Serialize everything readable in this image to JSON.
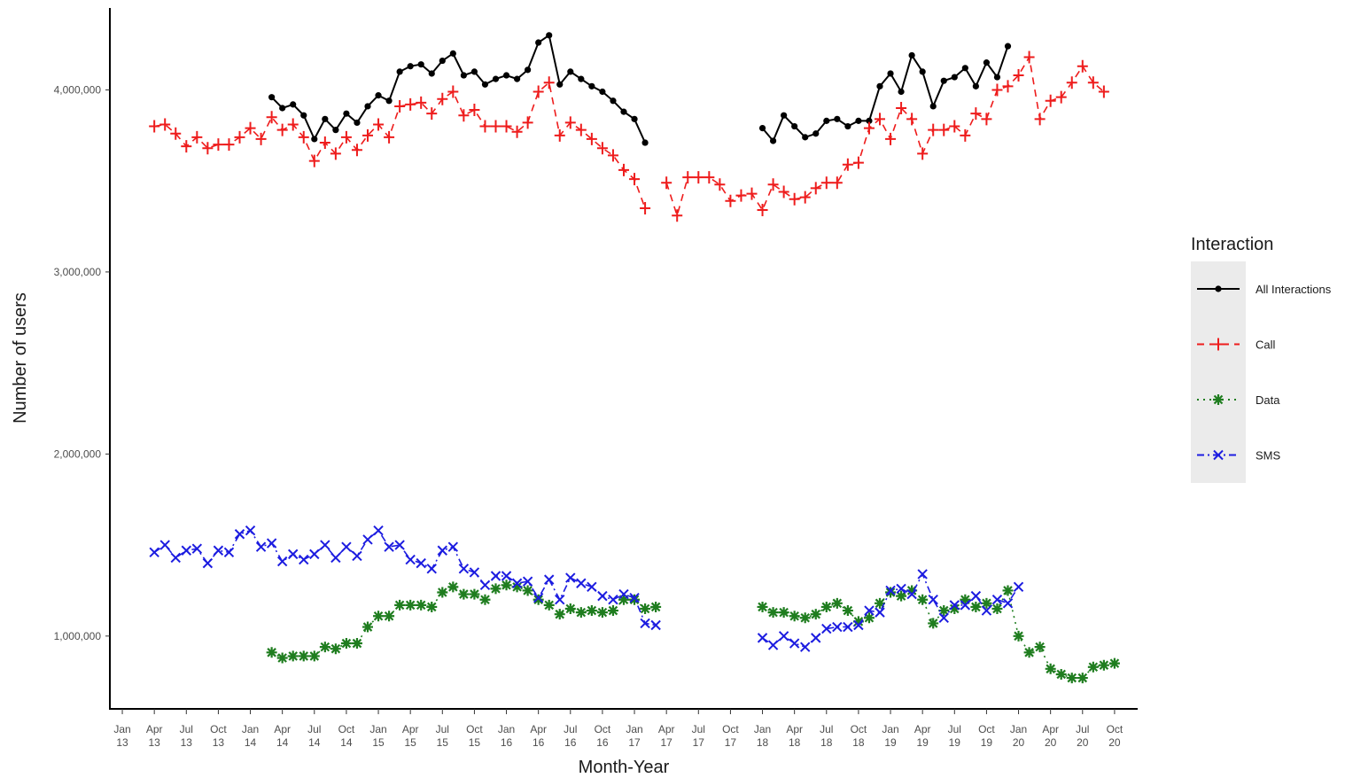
{
  "chart_data": {
    "type": "line",
    "xlabel": "Month-Year",
    "ylabel": "Number of users",
    "ylim": [
      600000,
      4450000
    ],
    "xlim": [
      "2012-12",
      "2020-12"
    ],
    "x_tick_labels": [
      [
        "Jan",
        "13"
      ],
      [
        "Apr",
        "13"
      ],
      [
        "Jul",
        "13"
      ],
      [
        "Oct",
        "13"
      ],
      [
        "Jan",
        "14"
      ],
      [
        "Apr",
        "14"
      ],
      [
        "Jul",
        "14"
      ],
      [
        "Oct",
        "14"
      ],
      [
        "Jan",
        "15"
      ],
      [
        "Apr",
        "15"
      ],
      [
        "Jul",
        "15"
      ],
      [
        "Oct",
        "15"
      ],
      [
        "Jan",
        "16"
      ],
      [
        "Apr",
        "16"
      ],
      [
        "Jul",
        "16"
      ],
      [
        "Oct",
        "16"
      ],
      [
        "Jan",
        "17"
      ],
      [
        "Apr",
        "17"
      ],
      [
        "Jul",
        "17"
      ],
      [
        "Oct",
        "17"
      ],
      [
        "Jan",
        "18"
      ],
      [
        "Apr",
        "18"
      ],
      [
        "Jul",
        "18"
      ],
      [
        "Oct",
        "18"
      ],
      [
        "Jan",
        "19"
      ],
      [
        "Apr",
        "19"
      ],
      [
        "Jul",
        "19"
      ],
      [
        "Oct",
        "19"
      ],
      [
        "Jan",
        "20"
      ],
      [
        "Apr",
        "20"
      ],
      [
        "Jul",
        "20"
      ],
      [
        "Oct",
        "20"
      ]
    ],
    "x_tick_dates": [
      "2013-01",
      "2013-04",
      "2013-07",
      "2013-10",
      "2014-01",
      "2014-04",
      "2014-07",
      "2014-10",
      "2015-01",
      "2015-04",
      "2015-07",
      "2015-10",
      "2016-01",
      "2016-04",
      "2016-07",
      "2016-10",
      "2017-01",
      "2017-04",
      "2017-07",
      "2017-10",
      "2018-01",
      "2018-04",
      "2018-07",
      "2018-10",
      "2019-01",
      "2019-04",
      "2019-07",
      "2019-10",
      "2020-01",
      "2020-04",
      "2020-07",
      "2020-10"
    ],
    "y_ticks": [
      1000000,
      2000000,
      3000000,
      4000000
    ],
    "y_tick_labels": [
      "1,000,000",
      "2,000,000",
      "3,000,000",
      "4,000,000"
    ],
    "legend": {
      "title": "Interaction",
      "position": "right"
    },
    "series": [
      {
        "name": "All Interactions",
        "color": "#000000",
        "marker": "dot",
        "line": "solid",
        "segments": [
          {
            "start": "2014-03",
            "values": [
              3960000,
              3900000,
              3920000,
              3860000,
              3730000,
              3840000,
              3780000,
              3870000,
              3820000,
              3910000,
              3970000,
              3940000,
              4100000,
              4130000,
              4140000,
              4090000,
              4160000,
              4200000,
              4080000,
              4100000,
              4030000,
              4060000,
              4080000,
              4060000,
              4110000,
              4260000,
              4300000,
              4030000,
              4100000,
              4060000,
              4020000,
              3990000,
              3940000,
              3880000,
              3840000,
              3710000
            ]
          },
          {
            "start": "2018-01",
            "values": [
              3790000,
              3720000,
              3860000,
              3800000,
              3740000,
              3760000,
              3830000,
              3840000,
              3800000,
              3830000,
              3830000,
              4020000,
              4090000,
              3990000,
              4190000,
              4100000,
              3910000,
              4050000,
              4070000,
              4120000,
              4020000,
              4150000,
              4070000,
              4240000
            ]
          }
        ]
      },
      {
        "name": "Call",
        "color": "#ee1c1c",
        "marker": "plus",
        "line": "dashed",
        "segments": [
          {
            "start": "2013-04",
            "values": [
              3800000,
              3810000,
              3760000,
              3690000,
              3740000,
              3680000,
              3700000,
              3700000,
              3740000,
              3790000,
              3730000,
              3850000,
              3780000,
              3810000,
              3740000,
              3610000,
              3710000,
              3650000,
              3740000,
              3670000,
              3750000,
              3810000,
              3740000,
              3910000,
              3920000,
              3930000,
              3870000,
              3950000,
              3990000,
              3860000,
              3890000,
              3800000,
              3800000,
              3800000,
              3770000,
              3820000,
              3990000,
              4040000,
              3750000,
              3820000,
              3780000,
              3730000,
              3680000,
              3640000,
              3560000,
              3510000,
              3350000
            ]
          },
          {
            "start": "2017-04",
            "values": [
              3490000,
              3310000,
              3520000,
              3520000,
              3520000,
              3480000,
              3390000,
              3420000,
              3430000,
              3340000,
              3480000,
              3440000,
              3400000,
              3410000,
              3460000,
              3490000,
              3490000,
              3590000,
              3600000,
              3790000,
              3840000,
              3730000,
              3900000,
              3840000,
              3650000,
              3780000,
              3780000,
              3800000,
              3750000,
              3870000,
              3840000,
              4000000,
              4020000,
              4080000,
              4180000,
              3840000,
              3940000,
              3960000,
              4040000,
              4130000,
              4040000,
              3990000
            ]
          }
        ]
      },
      {
        "name": "Data",
        "color": "#1f7d1f",
        "marker": "asterisk",
        "line": "dotted",
        "segments": [
          {
            "start": "2014-03",
            "values": [
              910000,
              880000,
              890000,
              890000,
              890000,
              940000,
              930000,
              960000,
              960000,
              1050000,
              1110000,
              1110000,
              1170000,
              1170000,
              1170000,
              1160000,
              1240000,
              1270000,
              1230000,
              1230000,
              1200000,
              1260000,
              1280000,
              1270000,
              1250000,
              1200000,
              1170000,
              1120000,
              1150000,
              1130000,
              1140000,
              1130000,
              1140000,
              1200000,
              1200000,
              1150000,
              1160000
            ]
          },
          {
            "start": "2018-01",
            "values": [
              1160000,
              1130000,
              1130000,
              1110000,
              1100000,
              1120000,
              1160000,
              1180000,
              1140000,
              1080000,
              1100000,
              1180000,
              1240000,
              1220000,
              1250000,
              1200000,
              1070000,
              1140000,
              1150000,
              1200000,
              1160000,
              1180000,
              1150000,
              1250000,
              1000000,
              910000,
              940000,
              820000,
              790000,
              770000,
              770000,
              830000,
              840000,
              850000
            ]
          }
        ]
      },
      {
        "name": "SMS",
        "color": "#1c1ce0",
        "marker": "x",
        "line": "dashdot",
        "segments": [
          {
            "start": "2013-04",
            "values": [
              1460000,
              1500000,
              1430000,
              1470000,
              1480000,
              1400000,
              1470000,
              1460000,
              1560000,
              1580000,
              1490000,
              1510000,
              1410000,
              1450000,
              1420000,
              1450000,
              1500000,
              1430000,
              1490000,
              1440000,
              1530000,
              1580000,
              1490000,
              1500000,
              1420000,
              1400000,
              1370000,
              1470000,
              1490000,
              1370000,
              1350000,
              1280000,
              1330000,
              1330000,
              1290000,
              1300000,
              1210000,
              1310000,
              1200000,
              1320000,
              1290000,
              1270000,
              1220000,
              1200000,
              1230000,
              1210000,
              1070000,
              1060000
            ]
          },
          {
            "start": "2018-01",
            "values": [
              990000,
              950000,
              1000000,
              960000,
              940000,
              990000,
              1040000,
              1050000,
              1050000,
              1060000,
              1140000,
              1130000,
              1250000,
              1260000,
              1230000,
              1340000,
              1200000,
              1100000,
              1170000,
              1170000,
              1220000,
              1140000,
              1200000,
              1180000,
              1270000
            ]
          }
        ]
      }
    ]
  }
}
